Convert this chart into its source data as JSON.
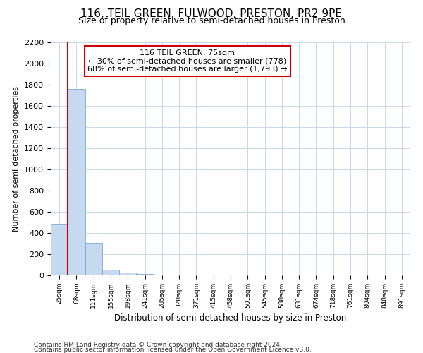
{
  "title": "116, TEIL GREEN, FULWOOD, PRESTON, PR2 9PE",
  "subtitle": "Size of property relative to semi-detached houses in Preston",
  "xlabel": "Distribution of semi-detached houses by size in Preston",
  "ylabel": "Number of semi-detached properties",
  "footer1": "Contains HM Land Registry data © Crown copyright and database right 2024.",
  "footer2": "Contains public sector information licensed under the Open Government Licence v3.0.",
  "annotation_title": "116 TEIL GREEN: 75sqm",
  "annotation_line1": "← 30% of semi-detached houses are smaller (778)",
  "annotation_line2": "68% of semi-detached houses are larger (1,793) →",
  "bar_categories": [
    "25sqm",
    "68sqm",
    "111sqm",
    "155sqm",
    "198sqm",
    "241sqm",
    "285sqm",
    "328sqm",
    "371sqm",
    "415sqm",
    "458sqm",
    "501sqm",
    "545sqm",
    "588sqm",
    "631sqm",
    "674sqm",
    "718sqm",
    "761sqm",
    "804sqm",
    "848sqm",
    "891sqm"
  ],
  "bar_values": [
    490,
    1760,
    305,
    52,
    28,
    16,
    0,
    0,
    0,
    0,
    0,
    0,
    0,
    0,
    0,
    0,
    0,
    0,
    0,
    0,
    0
  ],
  "bar_color": "#c5d9f1",
  "bar_edgecolor": "#7ba7d4",
  "redline_bar_index": 1,
  "ylim": [
    0,
    2200
  ],
  "yticks": [
    0,
    200,
    400,
    600,
    800,
    1000,
    1200,
    1400,
    1600,
    1800,
    2000,
    2200
  ],
  "grid_color": "#c8d8e8",
  "background_color": "#ffffff",
  "annotation_box_edgecolor": "#cc0000",
  "annotation_box_facecolor": "#ffffff",
  "redline_color": "#cc0000",
  "title_fontsize": 11,
  "subtitle_fontsize": 9,
  "ylabel_fontsize": 8,
  "xlabel_fontsize": 8.5,
  "annotation_fontsize": 8,
  "footer_fontsize": 6.5
}
